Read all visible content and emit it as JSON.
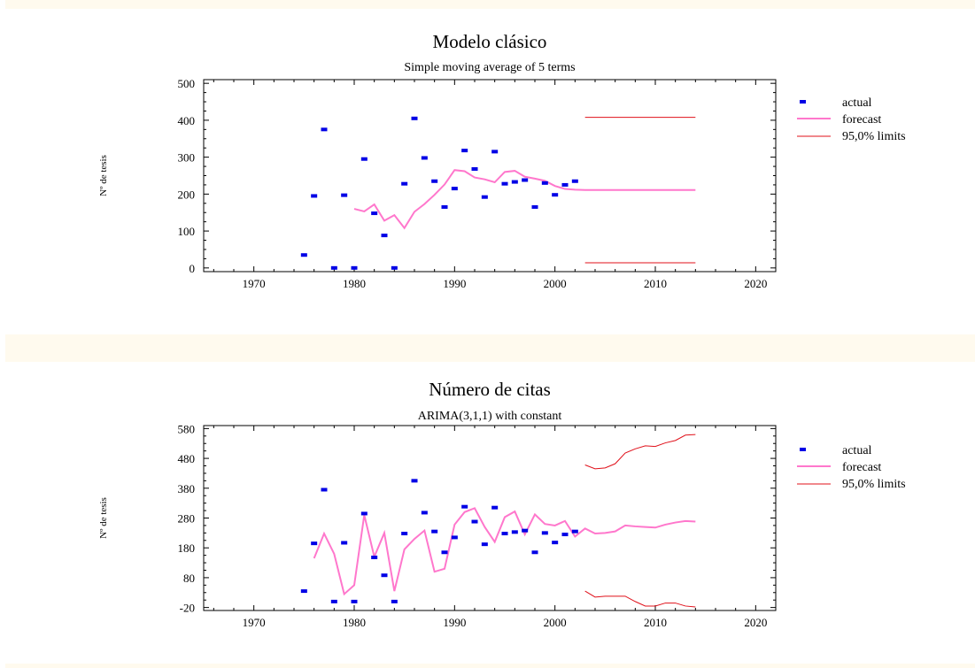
{
  "chart_data": [
    {
      "type": "line",
      "title": "Modelo clásico",
      "subtitle": "Simple moving average of 5 terms",
      "xlabel": "",
      "ylabel": "Nº de tesis",
      "xlim": [
        1965,
        2022
      ],
      "ylim": [
        -10,
        510
      ],
      "xticks": [
        1970,
        1980,
        1990,
        2000,
        2010,
        2020
      ],
      "yticks": [
        0,
        100,
        200,
        300,
        400,
        500
      ],
      "x_tick_labels": [
        "1970",
        "1980",
        "1990",
        "2000",
        "2010",
        "2020"
      ],
      "y_tick_labels": [
        "0",
        "100",
        "200",
        "300",
        "400",
        "500"
      ],
      "grid": false,
      "legend_position": "right",
      "colors": {
        "actual": "#0000e6",
        "forecast": "#ff77cc",
        "limits": "#e0101a"
      },
      "series": [
        {
          "name": "actual",
          "style": "points",
          "x": [
            1975,
            1976,
            1977,
            1978,
            1979,
            1980,
            1981,
            1982,
            1983,
            1984,
            1985,
            1986,
            1987,
            1988,
            1989,
            1990,
            1991,
            1992,
            1993,
            1994,
            1995,
            1996,
            1997,
            1998,
            1999,
            2000,
            2001,
            2002
          ],
          "values": [
            35,
            195,
            375,
            0,
            197,
            0,
            295,
            148,
            88,
            0,
            228,
            405,
            298,
            235,
            165,
            215,
            318,
            268,
            192,
            315,
            228,
            233,
            238,
            165,
            230,
            198,
            225,
            235
          ]
        },
        {
          "name": "forecast",
          "style": "line",
          "x": [
            1980,
            1981,
            1982,
            1983,
            1984,
            1985,
            1986,
            1987,
            1988,
            1989,
            1990,
            1991,
            1992,
            1993,
            1994,
            1995,
            1996,
            1997,
            1998,
            1999,
            2000,
            2001,
            2002,
            2003,
            2004,
            2005,
            2006,
            2007,
            2008,
            2009,
            2010,
            2011,
            2012,
            2013,
            2014
          ],
          "values": [
            160,
            153,
            172,
            128,
            143,
            108,
            152,
            173,
            198,
            226,
            265,
            262,
            245,
            240,
            232,
            260,
            263,
            247,
            242,
            236,
            222,
            214,
            212,
            211,
            211,
            211,
            211,
            211,
            211,
            211,
            211,
            211,
            211,
            211,
            211
          ]
        },
        {
          "name": "95,0% limits",
          "style": "line",
          "x": [
            2003,
            2014
          ],
          "upper": [
            408,
            408
          ],
          "lower": [
            14,
            14
          ]
        }
      ]
    },
    {
      "type": "line",
      "title": "Número de citas",
      "subtitle": "ARIMA(3,1,1) with constant",
      "xlabel": "",
      "ylabel": "Nº de tesis",
      "xlim": [
        1965,
        2022
      ],
      "ylim": [
        -30,
        590
      ],
      "xticks": [
        1970,
        1980,
        1990,
        2000,
        2010,
        2020
      ],
      "yticks": [
        -20,
        80,
        180,
        280,
        380,
        480,
        580
      ],
      "x_tick_labels": [
        "1970",
        "1980",
        "1990",
        "2000",
        "2010",
        "2020"
      ],
      "y_tick_labels": [
        "-20",
        "80",
        "180",
        "280",
        "380",
        "480",
        "580"
      ],
      "grid": false,
      "legend_position": "right",
      "colors": {
        "actual": "#0000e6",
        "forecast": "#ff77cc",
        "limits": "#e0101a"
      },
      "series": [
        {
          "name": "actual",
          "style": "points",
          "x": [
            1975,
            1976,
            1977,
            1978,
            1979,
            1980,
            1981,
            1982,
            1983,
            1984,
            1985,
            1986,
            1987,
            1988,
            1989,
            1990,
            1991,
            1992,
            1993,
            1994,
            1995,
            1996,
            1997,
            1998,
            1999,
            2000,
            2001,
            2002
          ],
          "values": [
            35,
            195,
            375,
            0,
            197,
            0,
            295,
            148,
            88,
            0,
            228,
            405,
            298,
            235,
            165,
            215,
            318,
            268,
            192,
            315,
            228,
            233,
            238,
            165,
            230,
            198,
            225,
            235
          ]
        },
        {
          "name": "forecast",
          "style": "line",
          "x": [
            1976,
            1977,
            1978,
            1979,
            1980,
            1981,
            1982,
            1983,
            1984,
            1985,
            1986,
            1987,
            1988,
            1989,
            1990,
            1991,
            1992,
            1993,
            1994,
            1995,
            1996,
            1997,
            1998,
            1999,
            2000,
            2001,
            2002,
            2003,
            2004,
            2005,
            2006,
            2007,
            2008,
            2009,
            2010,
            2011,
            2012,
            2013,
            2014
          ],
          "values": [
            145,
            228,
            160,
            25,
            55,
            290,
            150,
            230,
            35,
            175,
            210,
            238,
            100,
            110,
            258,
            300,
            313,
            250,
            200,
            283,
            302,
            225,
            292,
            260,
            255,
            270,
            218,
            245,
            228,
            230,
            235,
            255,
            252,
            250,
            248,
            258,
            265,
            270,
            268
          ]
        },
        {
          "name": "95,0% limits",
          "style": "line",
          "x": [
            2003,
            2004,
            2005,
            2006,
            2007,
            2008,
            2009,
            2010,
            2011,
            2012,
            2013,
            2014
          ],
          "upper": [
            458,
            445,
            448,
            462,
            498,
            512,
            522,
            520,
            532,
            540,
            558,
            560
          ],
          "lower": [
            35,
            15,
            18,
            18,
            18,
            0,
            -15,
            -15,
            -5,
            -5,
            -15,
            -18
          ]
        }
      ]
    }
  ]
}
